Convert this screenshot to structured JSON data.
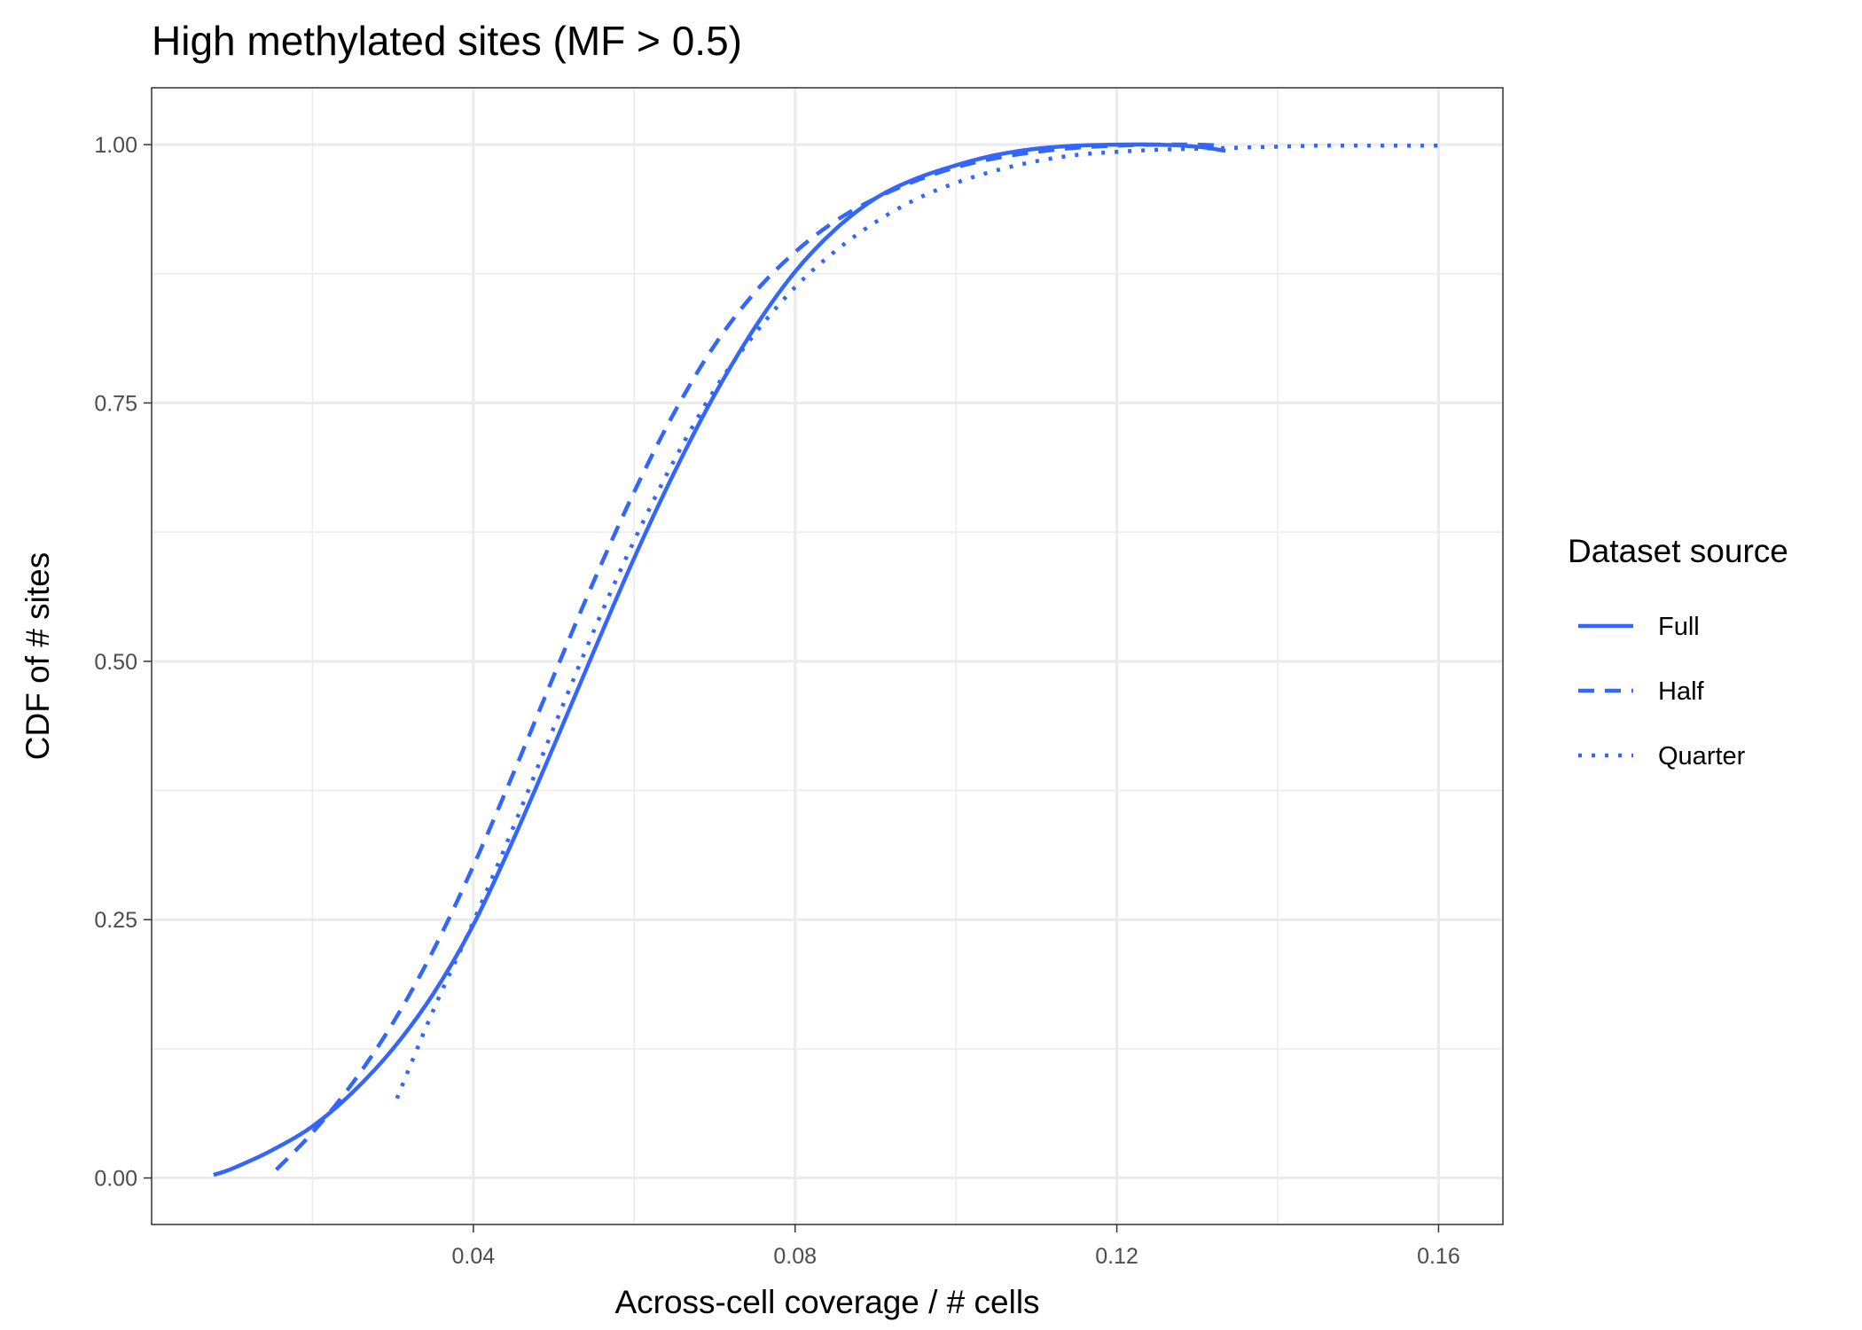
{
  "chart_data": {
    "type": "line",
    "title": "High methylated sites (MF > 0.5)",
    "xlabel": "Across-cell coverage / # cells",
    "ylabel": "CDF of # sites",
    "xlim": [
      0.0,
      0.168
    ],
    "ylim": [
      -0.045,
      1.055
    ],
    "x_ticks": [
      0.04,
      0.08,
      0.12,
      0.16
    ],
    "x_tick_labels": [
      "0.04",
      "0.08",
      "0.12",
      "0.16"
    ],
    "y_ticks": [
      0.0,
      0.25,
      0.5,
      0.75,
      1.0
    ],
    "y_tick_labels": [
      "0.00",
      "0.25",
      "0.50",
      "0.75",
      "1.00"
    ],
    "grid": true,
    "line_color": "#3366ff",
    "legend": {
      "title": "Dataset source",
      "position": "right"
    },
    "series": [
      {
        "name": "Full",
        "linetype": "solid",
        "x": [
          0.0077,
          0.01,
          0.015,
          0.02,
          0.025,
          0.03,
          0.035,
          0.04,
          0.045,
          0.05,
          0.055,
          0.06,
          0.065,
          0.07,
          0.075,
          0.08,
          0.085,
          0.09,
          0.095,
          0.1,
          0.105,
          0.11,
          0.115,
          0.12,
          0.125,
          0.13,
          0.1335
        ],
        "y": [
          0.003,
          0.009,
          0.027,
          0.05,
          0.083,
          0.125,
          0.178,
          0.245,
          0.328,
          0.418,
          0.51,
          0.6,
          0.683,
          0.758,
          0.823,
          0.877,
          0.918,
          0.948,
          0.967,
          0.98,
          0.99,
          0.996,
          0.999,
          1.0,
          1.0,
          0.998,
          0.994
        ]
      },
      {
        "name": "Half",
        "linetype": "dashed",
        "x": [
          0.0155,
          0.02,
          0.025,
          0.03,
          0.035,
          0.04,
          0.045,
          0.05,
          0.055,
          0.06,
          0.065,
          0.07,
          0.075,
          0.08,
          0.085,
          0.09,
          0.095,
          0.1,
          0.105,
          0.11,
          0.115,
          0.12,
          0.125,
          0.13,
          0.133
        ],
        "y": [
          0.008,
          0.044,
          0.092,
          0.15,
          0.22,
          0.302,
          0.392,
          0.486,
          0.578,
          0.664,
          0.741,
          0.806,
          0.857,
          0.896,
          0.926,
          0.948,
          0.965,
          0.978,
          0.987,
          0.993,
          0.997,
          0.999,
          1.0,
          1.0,
          0.999
        ]
      },
      {
        "name": "Quarter",
        "linetype": "dotted",
        "x": [
          0.0305,
          0.035,
          0.04,
          0.045,
          0.05,
          0.055,
          0.06,
          0.065,
          0.07,
          0.075,
          0.08,
          0.085,
          0.09,
          0.095,
          0.1,
          0.105,
          0.11,
          0.115,
          0.12,
          0.125,
          0.13,
          0.135,
          0.14,
          0.145,
          0.15,
          0.155,
          0.16
        ],
        "y": [
          0.077,
          0.162,
          0.248,
          0.34,
          0.436,
          0.53,
          0.617,
          0.695,
          0.763,
          0.817,
          0.862,
          0.897,
          0.925,
          0.947,
          0.963,
          0.975,
          0.984,
          0.99,
          0.993,
          0.995,
          0.996,
          0.997,
          0.998,
          0.999,
          0.999,
          0.999,
          0.999
        ]
      }
    ]
  }
}
